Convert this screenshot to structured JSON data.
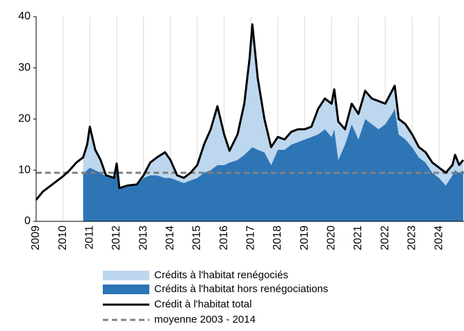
{
  "chart_data": {
    "type": "area",
    "xlim": [
      2009,
      2024.93
    ],
    "xticks": [
      2009,
      2010,
      2011,
      2012,
      2013,
      2014,
      2015,
      2016,
      2017,
      2018,
      2019,
      2020,
      2021,
      2022,
      2023,
      2024
    ],
    "ylim": [
      0,
      40
    ],
    "yticks": [
      0,
      10,
      20,
      30,
      40
    ],
    "grid": "x",
    "x": [
      2009.0,
      2009.25,
      2009.5,
      2009.75,
      2010.0,
      2010.25,
      2010.5,
      2010.75,
      2010.9,
      2011.0,
      2011.2,
      2011.4,
      2011.6,
      2011.9,
      2012.0,
      2012.1,
      2012.4,
      2012.75,
      2013.0,
      2013.25,
      2013.5,
      2013.8,
      2014.0,
      2014.25,
      2014.5,
      2014.75,
      2015.0,
      2015.25,
      2015.5,
      2015.75,
      2016.0,
      2016.2,
      2016.5,
      2016.75,
      2016.95,
      2017.05,
      2017.25,
      2017.5,
      2017.75,
      2018.0,
      2018.25,
      2018.5,
      2018.75,
      2019.0,
      2019.25,
      2019.5,
      2019.75,
      2020.0,
      2020.1,
      2020.25,
      2020.5,
      2020.75,
      2021.0,
      2021.25,
      2021.5,
      2021.75,
      2022.0,
      2022.25,
      2022.35,
      2022.5,
      2022.75,
      2023.0,
      2023.25,
      2023.5,
      2023.75,
      2024.0,
      2024.25,
      2024.5,
      2024.6,
      2024.75,
      2024.9
    ],
    "series": [
      {
        "name": "Crédits à l'habitat hors renégociations",
        "style": "area",
        "color": "#2e75b6",
        "values": [
          null,
          null,
          null,
          null,
          null,
          null,
          null,
          9.5,
          10,
          10.5,
          10,
          9.5,
          8.8,
          8.3,
          11,
          6.3,
          6.8,
          7,
          8.5,
          9,
          9,
          8.5,
          8.5,
          8,
          7.5,
          8,
          8.5,
          9.5,
          10,
          11,
          11,
          11.5,
          12,
          13,
          14,
          14.5,
          14,
          13.5,
          11,
          14,
          14,
          15,
          15.5,
          16,
          16.5,
          17,
          18,
          16.5,
          18,
          12,
          15,
          19,
          16,
          20,
          19,
          18,
          19,
          21,
          22,
          17,
          16,
          14.5,
          12.5,
          11.5,
          9.5,
          8.5,
          7,
          9,
          10,
          9.5,
          10
        ]
      },
      {
        "name": "Crédits à l'habitat renégociés",
        "style": "area",
        "stack": true,
        "color": "#bdd7ee",
        "values": [
          null,
          null,
          null,
          null,
          null,
          null,
          null,
          3,
          5,
          8,
          4,
          2.5,
          0.2,
          0.2,
          0.3,
          0.2,
          0.2,
          0.2,
          0.5,
          2.5,
          3.5,
          5,
          3.5,
          1,
          1,
          1.5,
          2.5,
          5.5,
          8,
          11.5,
          6,
          2.3,
          5,
          10,
          18,
          24,
          14,
          6.5,
          3.5,
          2.5,
          2,
          2.5,
          2.5,
          2,
          2,
          5,
          6,
          6.5,
          7.8,
          7.5,
          3,
          4,
          5,
          5.5,
          5,
          5.5,
          4,
          4.5,
          4.5,
          3,
          3,
          2.5,
          2,
          2,
          2,
          2,
          2.5,
          2,
          3,
          1.5,
          2
        ]
      },
      {
        "name": "Crédit à l'habitat total",
        "style": "line",
        "color": "#000000",
        "values": [
          4.2,
          5.8,
          6.8,
          7.8,
          8.8,
          10,
          11.5,
          12.5,
          15,
          18.5,
          14,
          12,
          9,
          8.5,
          11.3,
          6.5,
          7,
          7.2,
          9,
          11.5,
          12.5,
          13.5,
          12,
          9,
          8.5,
          9.5,
          11,
          15,
          18,
          22.5,
          17,
          13.8,
          17,
          23,
          32,
          38.5,
          28,
          20,
          14.5,
          16.5,
          16,
          17.5,
          18,
          18,
          18.5,
          22,
          24,
          23,
          25.8,
          19.5,
          18,
          23,
          21,
          25.5,
          24,
          23.5,
          23,
          25.5,
          26.5,
          20,
          19,
          17,
          14.5,
          13.5,
          11.5,
          10.5,
          9.5,
          11,
          13,
          11,
          12
        ]
      }
    ],
    "mean": {
      "name": "moyenne 2003 - 2014",
      "value": 9.5,
      "color": "#808080"
    },
    "legend_order": [
      1,
      0,
      2
    ]
  }
}
